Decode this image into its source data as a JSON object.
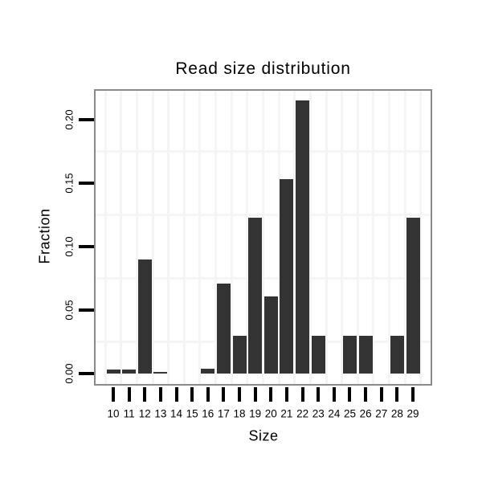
{
  "title": "Read size distribution",
  "chart_data": {
    "type": "bar",
    "title": "Read size distribution",
    "xlabel": "Size",
    "ylabel": "Fraction",
    "categories": [
      "10",
      "11",
      "12",
      "13",
      "14",
      "15",
      "16",
      "17",
      "18",
      "19",
      "20",
      "21",
      "22",
      "23",
      "24",
      "25",
      "26",
      "27",
      "28",
      "29"
    ],
    "values": [
      0.003,
      0.003,
      0.09,
      0.0015,
      0,
      0,
      0.004,
      0.071,
      0.03,
      0.123,
      0.061,
      0.153,
      0.215,
      0.03,
      0,
      0.03,
      0.03,
      0,
      0.03,
      0.123
    ],
    "y_ticks": [
      {
        "value": 0.0,
        "label": "0.00"
      },
      {
        "value": 0.05,
        "label": "0.05"
      },
      {
        "value": 0.1,
        "label": "0.10"
      },
      {
        "value": 0.15,
        "label": "0.15"
      },
      {
        "value": 0.2,
        "label": "0.20"
      }
    ],
    "y_minor_gridlines": [
      0.025,
      0.075,
      0.125,
      0.175
    ],
    "ylim": [
      -0.008,
      0.223
    ],
    "grid": "minor-horizontal-and-vertical-light-gray",
    "legend": "none",
    "colors": {
      "bar": "#333333",
      "panel_border": "#8a8a8a",
      "gridline": "#f5f5f5",
      "text": "#000000",
      "background": "#ffffff"
    }
  }
}
